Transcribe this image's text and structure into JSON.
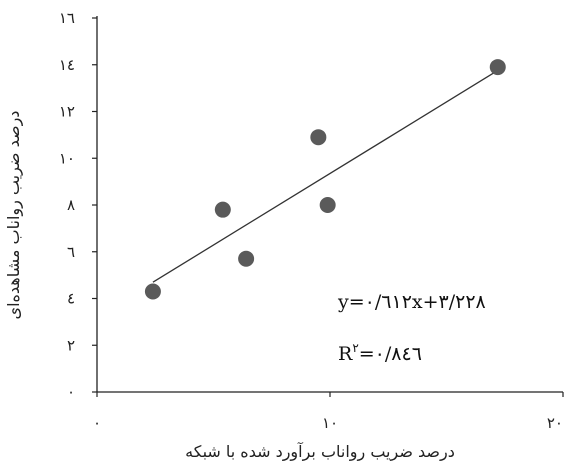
{
  "chart_data": {
    "type": "scatter",
    "title": "",
    "xlabel": "درصد ضریب رواناب برآورد شده با شبکه",
    "ylabel": "درصد ضریب رواناب مشاهده‌ای",
    "xlim": [
      0,
      20
    ],
    "ylim": [
      0,
      16
    ],
    "x_ticks": [
      0,
      10,
      20
    ],
    "x_tick_labels": [
      "۰",
      "۱۰",
      "۲۰"
    ],
    "y_ticks": [
      0,
      2,
      4,
      6,
      8,
      10,
      12,
      14,
      16
    ],
    "y_tick_labels": [
      "۰",
      "۲",
      "٤",
      "٦",
      "۸",
      "۱۰",
      "۱۲",
      "۱٤",
      "۱٦"
    ],
    "grid": false,
    "points": [
      {
        "x": 2.4,
        "y": 4.3
      },
      {
        "x": 5.4,
        "y": 7.8
      },
      {
        "x": 6.4,
        "y": 5.7
      },
      {
        "x": 9.5,
        "y": 10.9
      },
      {
        "x": 9.9,
        "y": 8.0
      },
      {
        "x": 17.2,
        "y": 13.9
      }
    ],
    "trendline": {
      "slope": 0.612,
      "intercept": 3.228,
      "x_range": [
        2.4,
        17.2
      ]
    },
    "equation_text": "y=۰/٦۱۲x+۳/۲۲۸",
    "r2_label": "R",
    "r2_sup": "۲",
    "r2_value": "=۰/۸٤٦",
    "marker_color": "#5a5a5a",
    "line_color": "#333333"
  }
}
